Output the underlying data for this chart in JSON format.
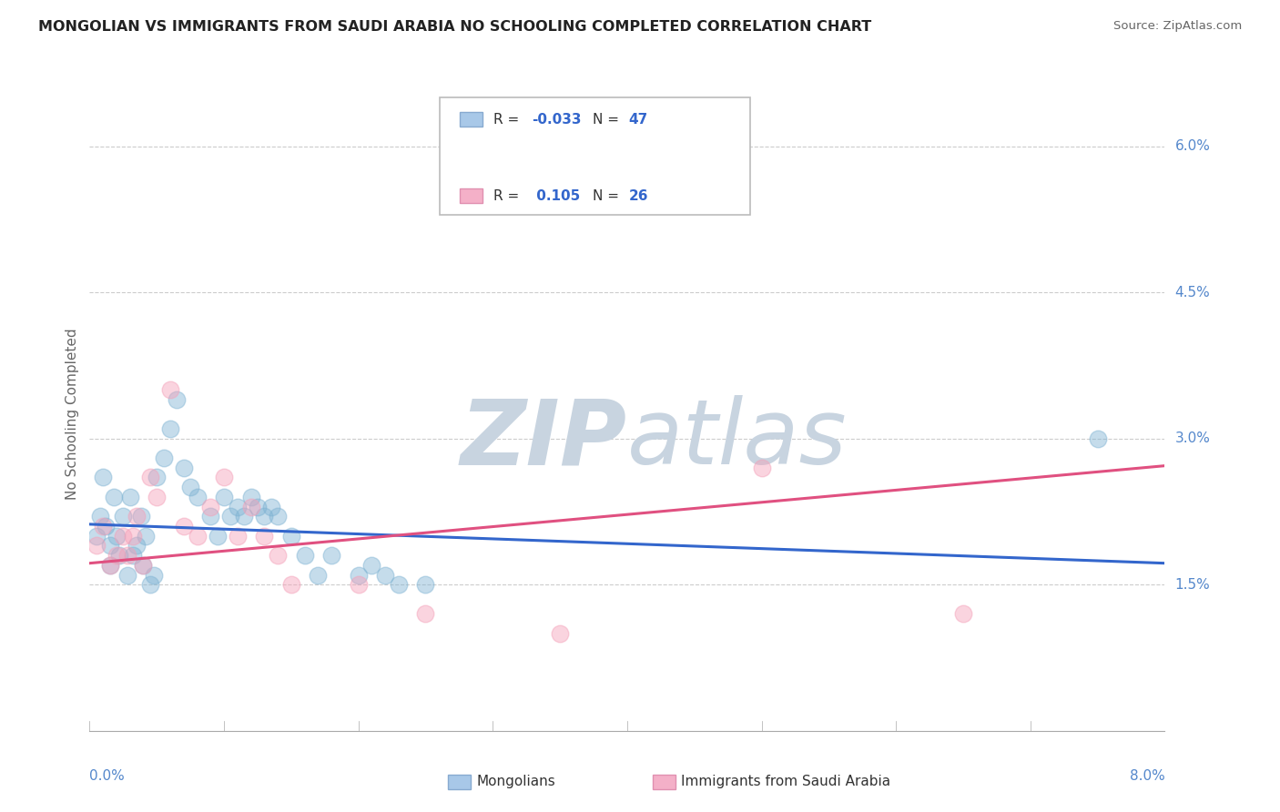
{
  "title": "MONGOLIAN VS IMMIGRANTS FROM SAUDI ARABIA NO SCHOOLING COMPLETED CORRELATION CHART",
  "source": "Source: ZipAtlas.com",
  "ylabel": "No Schooling Completed",
  "xlim": [
    0.0,
    8.0
  ],
  "ylim": [
    0.0,
    6.5
  ],
  "ytick_vals": [
    1.5,
    3.0,
    4.5,
    6.0
  ],
  "ytick_labels": [
    "1.5%",
    "3.0%",
    "4.5%",
    "6.0%"
  ],
  "blue_color": "#7fb3d3",
  "pink_color": "#f4a0b8",
  "blue_line_color": "#3366cc",
  "pink_line_color": "#e05080",
  "watermark_zip": "ZIP",
  "watermark_atlas": "atlas",
  "watermark_color": "#d5dfe8",
  "legend_r1": "-0.033",
  "legend_n1": "47",
  "legend_r2": "0.105",
  "legend_n2": "26",
  "blue_trend_x": [
    0.0,
    8.0
  ],
  "blue_trend_y": [
    2.12,
    1.72
  ],
  "pink_trend_x": [
    0.0,
    8.0
  ],
  "pink_trend_y": [
    1.72,
    2.72
  ],
  "bg_color": "#ffffff",
  "grid_color": "#cccccc",
  "blue_scatter_x": [
    0.05,
    0.08,
    0.1,
    0.12,
    0.15,
    0.15,
    0.18,
    0.2,
    0.22,
    0.25,
    0.28,
    0.3,
    0.32,
    0.35,
    0.38,
    0.4,
    0.42,
    0.45,
    0.48,
    0.5,
    0.55,
    0.6,
    0.65,
    0.7,
    0.75,
    0.8,
    0.9,
    0.95,
    1.0,
    1.05,
    1.1,
    1.15,
    1.2,
    1.25,
    1.3,
    1.35,
    1.4,
    1.5,
    1.6,
    1.7,
    1.8,
    2.0,
    2.1,
    2.2,
    2.3,
    2.5,
    7.5
  ],
  "blue_scatter_y": [
    2.0,
    2.2,
    2.6,
    2.1,
    1.9,
    1.7,
    2.4,
    2.0,
    1.8,
    2.2,
    1.6,
    2.4,
    1.8,
    1.9,
    2.2,
    1.7,
    2.0,
    1.5,
    1.6,
    2.6,
    2.8,
    3.1,
    3.4,
    2.7,
    2.5,
    2.4,
    2.2,
    2.0,
    2.4,
    2.2,
    2.3,
    2.2,
    2.4,
    2.3,
    2.2,
    2.3,
    2.2,
    2.0,
    1.8,
    1.6,
    1.8,
    1.6,
    1.7,
    1.6,
    1.5,
    1.5,
    3.0
  ],
  "pink_scatter_x": [
    0.05,
    0.1,
    0.15,
    0.2,
    0.25,
    0.28,
    0.32,
    0.35,
    0.4,
    0.45,
    0.5,
    0.6,
    0.7,
    0.8,
    0.9,
    1.0,
    1.1,
    1.2,
    1.3,
    1.4,
    1.5,
    2.0,
    2.5,
    3.5,
    5.0,
    6.5
  ],
  "pink_scatter_y": [
    1.9,
    2.1,
    1.7,
    1.8,
    2.0,
    1.8,
    2.0,
    2.2,
    1.7,
    2.6,
    2.4,
    3.5,
    2.1,
    2.0,
    2.3,
    2.6,
    2.0,
    2.3,
    2.0,
    1.8,
    1.5,
    1.5,
    1.2,
    1.0,
    2.7,
    1.2
  ]
}
